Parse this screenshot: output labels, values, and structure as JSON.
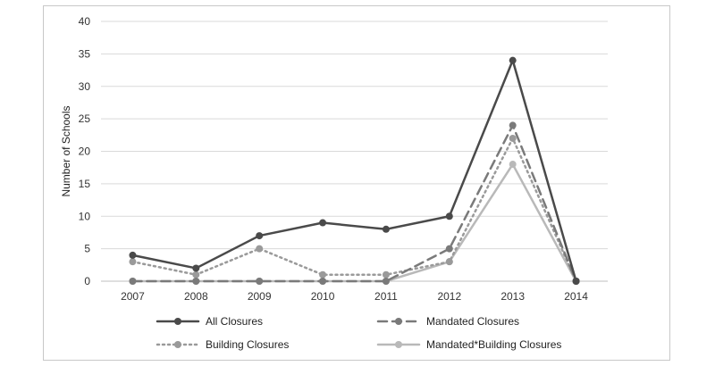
{
  "chart_data": {
    "type": "line",
    "categories": [
      "2007",
      "2008",
      "2009",
      "2010",
      "2011",
      "2012",
      "2013",
      "2014"
    ],
    "ylabel": "Number of Schools",
    "xlabel": "",
    "ylim": [
      0,
      40
    ],
    "yticks": [
      0,
      5,
      10,
      15,
      20,
      25,
      30,
      35,
      40
    ],
    "grid": true,
    "legend_position": "bottom",
    "series": [
      {
        "name": "All Closures",
        "values": [
          4,
          2,
          7,
          9,
          8,
          10,
          34,
          0
        ],
        "color": "#4a4a4a",
        "style": "solid"
      },
      {
        "name": "Mandated Closures",
        "values": [
          0,
          0,
          0,
          0,
          0,
          5,
          24,
          0
        ],
        "color": "#7a7a7a",
        "style": "dashed"
      },
      {
        "name": "Building Closures",
        "values": [
          3,
          1,
          5,
          1,
          1,
          3,
          22,
          0
        ],
        "color": "#9a9a9a",
        "style": "dotted"
      },
      {
        "name": "Mandated*Building Closures",
        "values": [
          0,
          0,
          0,
          0,
          0,
          3,
          18,
          0
        ],
        "color": "#b9b9b9",
        "style": "solid"
      }
    ]
  }
}
